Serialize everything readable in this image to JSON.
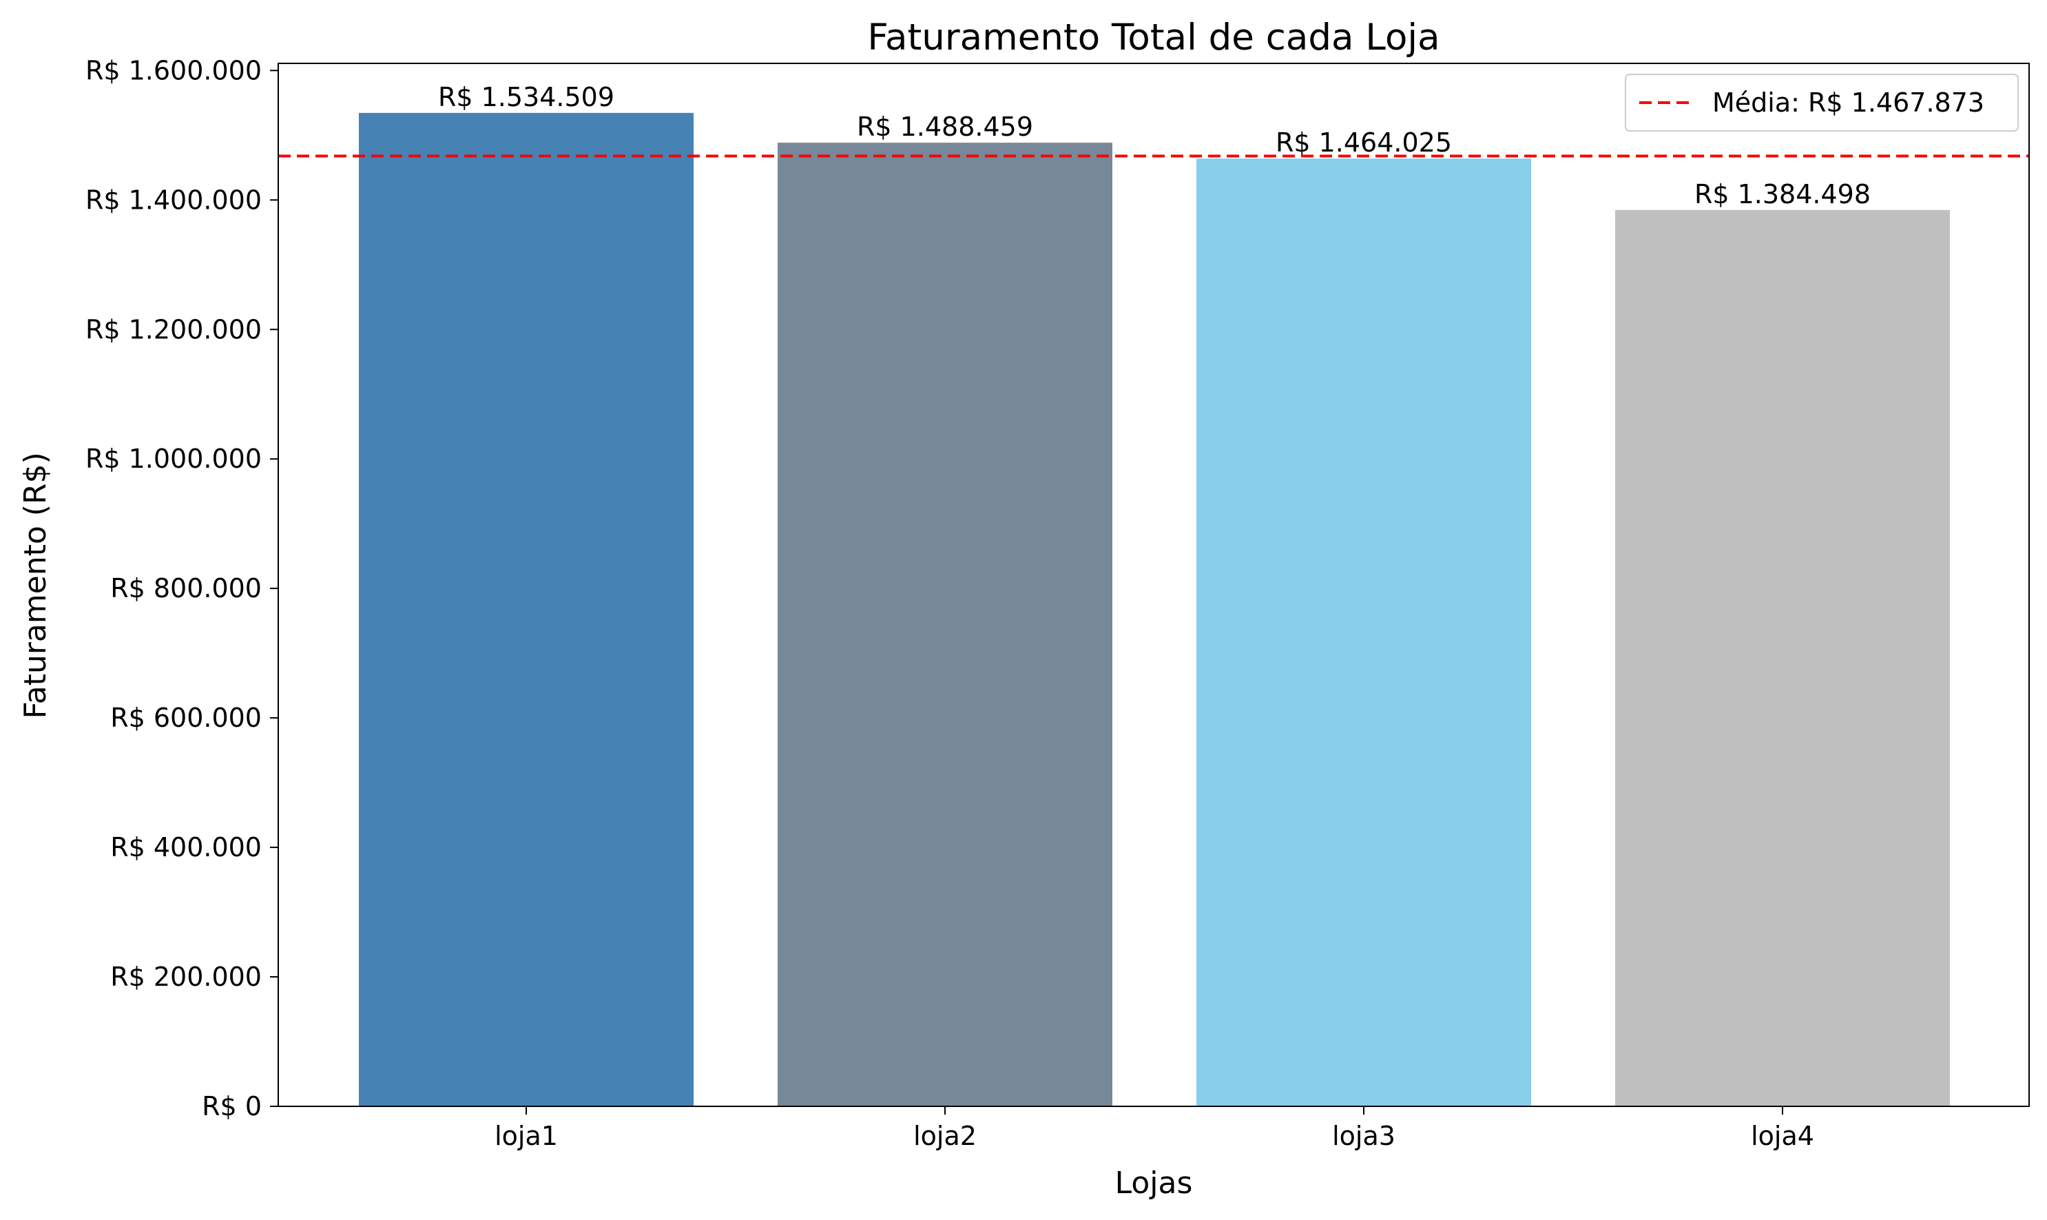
{
  "chart_data": {
    "type": "bar",
    "title": "Faturamento Total de cada Loja",
    "xlabel": "Lojas",
    "ylabel": "Faturamento (R$)",
    "categories": [
      "loja1",
      "loja2",
      "loja3",
      "loja4"
    ],
    "values": [
      1534509,
      1488459,
      1464025,
      1384498
    ],
    "value_labels": [
      "R$ 1.534.509",
      "R$ 1.488.459",
      "R$ 1.464.025",
      "R$ 1.384.498"
    ],
    "bar_colors": [
      "#4682b4",
      "#778899",
      "#87ceeb",
      "#bfbfbf"
    ],
    "ylim": [
      0,
      1611000
    ],
    "yticks": [
      0,
      200000,
      400000,
      600000,
      800000,
      1000000,
      1200000,
      1400000,
      1600000
    ],
    "ytick_labels": [
      "R$ 0",
      "R$ 200.000",
      "R$ 400.000",
      "R$ 600.000",
      "R$ 800.000",
      "R$ 1.000.000",
      "R$ 1.200.000",
      "R$ 1.400.000",
      "R$ 1.600.000"
    ],
    "mean_line": {
      "value": 1467873,
      "label": "Média: R$ 1.467.873",
      "color": "#ff0000",
      "style": "dashed"
    },
    "legend_position": "top-right",
    "grid": false
  }
}
